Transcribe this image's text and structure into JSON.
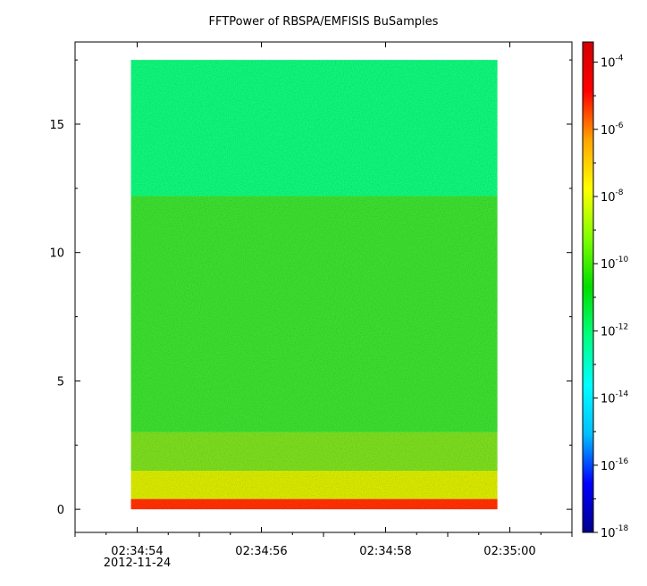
{
  "chart_data": {
    "type": "heatmap",
    "title": "FFTPower of RBSPA/EMFISIS  BuSamples",
    "xlabel": "",
    "ylabel": "",
    "x_range": [
      "02:34:53.0",
      "02:35:01.0"
    ],
    "data_x_range": [
      "02:34:53.9",
      "02:34:59.8"
    ],
    "x_ticks": [
      {
        "label": "02:34:54",
        "sublabel": "2012-11-24"
      },
      {
        "label": "02:34:56",
        "sublabel": ""
      },
      {
        "label": "02:34:58",
        "sublabel": ""
      },
      {
        "label": "02:35:00",
        "sublabel": ""
      }
    ],
    "y_range": [
      -0.9,
      18.2
    ],
    "data_y_range": [
      0,
      17.5
    ],
    "y_ticks": [
      0,
      5,
      10,
      15
    ],
    "colorbar": {
      "scale": "log",
      "range_exponents": [
        -18,
        -3.4
      ],
      "tick_base": "10",
      "tick_exponents": [
        "-4",
        "-6",
        "-8",
        "-10",
        "-12",
        "-14",
        "-16",
        "-18"
      ],
      "colormap": [
        "#00008b",
        "#0000ff",
        "#00bfff",
        "#00ffff",
        "#00ff80",
        "#00dd00",
        "#80ff00",
        "#ffff00",
        "#ffa500",
        "#ff0000",
        "#d00000"
      ]
    },
    "bands": [
      {
        "y_from": 12.2,
        "y_to": 17.5,
        "log_power": -12.7,
        "color": "#16f57a"
      },
      {
        "y_from": 3.0,
        "y_to": 12.2,
        "log_power": -10.6,
        "color": "#3ddc30"
      },
      {
        "y_from": 1.5,
        "y_to": 3.0,
        "log_power": -9.3,
        "color": "#7cdc20"
      },
      {
        "y_from": 0.4,
        "y_to": 1.5,
        "log_power": -8.2,
        "color": "#d8e800"
      },
      {
        "y_from": 0.0,
        "y_to": 0.4,
        "log_power": -5.5,
        "color": "#ff3000"
      }
    ]
  }
}
